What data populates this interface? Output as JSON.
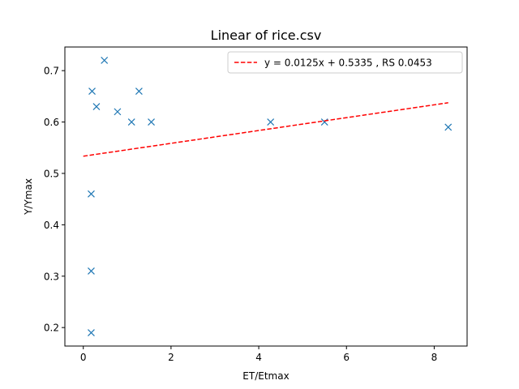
{
  "chart_data": {
    "type": "scatter",
    "title": "Linear of rice.csv",
    "xlabel": "ET/Etmax",
    "ylabel": "Y/Ymax",
    "xlim": [
      -0.42,
      8.75
    ],
    "ylim": [
      0.164,
      0.746
    ],
    "xticks": [
      0,
      2,
      4,
      6,
      8
    ],
    "yticks": [
      0.2,
      0.3,
      0.4,
      0.5,
      0.6,
      0.7
    ],
    "grid": false,
    "legend_position": "top-right",
    "series": [
      {
        "kind": "scatter",
        "marker": "x",
        "color": "#1f77b4",
        "x": [
          0.18,
          0.18,
          0.18,
          0.2,
          0.3,
          0.48,
          0.78,
          1.1,
          1.27,
          1.55,
          4.27,
          5.5,
          8.32
        ],
        "y": [
          0.19,
          0.31,
          0.46,
          0.66,
          0.63,
          0.72,
          0.62,
          0.6,
          0.66,
          0.6,
          0.6,
          0.6,
          0.59
        ]
      },
      {
        "kind": "line",
        "name": "y = 0.0125x + 0.5335 , RS 0.0453",
        "style": "dashed",
        "color": "#ff0000",
        "x": [
          0.0,
          8.32
        ],
        "y": [
          0.5335,
          0.6375
        ]
      }
    ]
  }
}
